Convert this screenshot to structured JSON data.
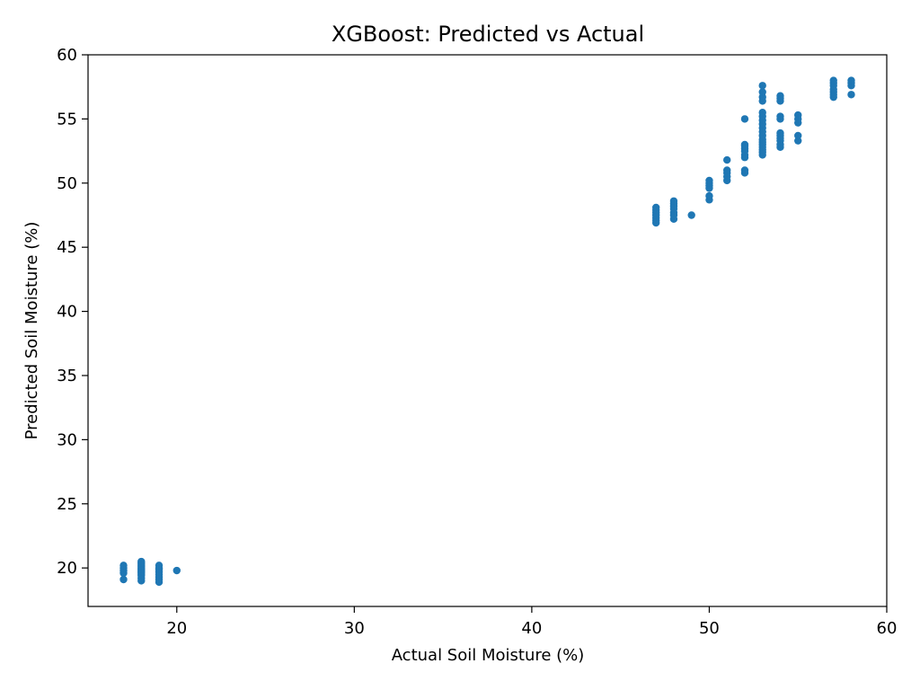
{
  "chart_data": {
    "type": "scatter",
    "title": "XGBoost: Predicted vs Actual",
    "xlabel": "Actual Soil Moisture (%)",
    "ylabel": "Predicted Soil Moisture (%)",
    "xlim": [
      15,
      60
    ],
    "ylim": [
      17,
      60
    ],
    "xticks": [
      20,
      30,
      40,
      50,
      60
    ],
    "yticks": [
      20,
      25,
      30,
      35,
      40,
      45,
      50,
      55,
      60
    ],
    "grid": false,
    "marker_color": "#1f77b4",
    "series": [
      {
        "points": [
          [
            17,
            19.1
          ],
          [
            17,
            19.6
          ],
          [
            17,
            19.8
          ],
          [
            17,
            20.0
          ],
          [
            17,
            20.2
          ],
          [
            18,
            19.0
          ],
          [
            18,
            19.2
          ],
          [
            18,
            19.4
          ],
          [
            18,
            19.5
          ],
          [
            18,
            19.6
          ],
          [
            18,
            19.7
          ],
          [
            18,
            19.8
          ],
          [
            18,
            19.9
          ],
          [
            18,
            20.0
          ],
          [
            18,
            20.1
          ],
          [
            18,
            20.2
          ],
          [
            18,
            20.3
          ],
          [
            18,
            20.4
          ],
          [
            18,
            20.5
          ],
          [
            19,
            18.9
          ],
          [
            19,
            19.1
          ],
          [
            19,
            19.3
          ],
          [
            19,
            19.5
          ],
          [
            19,
            19.7
          ],
          [
            19,
            19.9
          ],
          [
            19,
            20.0
          ],
          [
            19,
            20.2
          ],
          [
            20,
            19.8
          ],
          [
            47,
            46.9
          ],
          [
            47,
            47.1
          ],
          [
            47,
            47.3
          ],
          [
            47,
            47.5
          ],
          [
            47,
            47.7
          ],
          [
            47,
            47.9
          ],
          [
            47,
            48.1
          ],
          [
            48,
            47.2
          ],
          [
            48,
            47.5
          ],
          [
            48,
            47.7
          ],
          [
            48,
            48.0
          ],
          [
            48,
            48.2
          ],
          [
            48,
            48.4
          ],
          [
            48,
            48.6
          ],
          [
            49,
            47.5
          ],
          [
            50,
            48.7
          ],
          [
            50,
            49.0
          ],
          [
            50,
            49.6
          ],
          [
            50,
            49.8
          ],
          [
            50,
            50.0
          ],
          [
            50,
            50.2
          ],
          [
            51,
            50.2
          ],
          [
            51,
            50.5
          ],
          [
            51,
            50.8
          ],
          [
            51,
            51.0
          ],
          [
            51,
            51.8
          ],
          [
            52,
            50.8
          ],
          [
            52,
            51.0
          ],
          [
            52,
            52.0
          ],
          [
            52,
            52.2
          ],
          [
            52,
            52.5
          ],
          [
            52,
            52.7
          ],
          [
            52,
            52.9
          ],
          [
            52,
            53.0
          ],
          [
            52,
            55.0
          ],
          [
            53,
            52.2
          ],
          [
            53,
            52.4
          ],
          [
            53,
            52.6
          ],
          [
            53,
            52.8
          ],
          [
            53,
            53.0
          ],
          [
            53,
            53.2
          ],
          [
            53,
            53.4
          ],
          [
            53,
            53.7
          ],
          [
            53,
            54.0
          ],
          [
            53,
            54.3
          ],
          [
            53,
            54.6
          ],
          [
            53,
            54.9
          ],
          [
            53,
            55.2
          ],
          [
            53,
            55.5
          ],
          [
            53,
            56.4
          ],
          [
            53,
            56.7
          ],
          [
            53,
            57.1
          ],
          [
            53,
            57.6
          ],
          [
            54,
            52.8
          ],
          [
            54,
            53.0
          ],
          [
            54,
            53.3
          ],
          [
            54,
            53.5
          ],
          [
            54,
            53.7
          ],
          [
            54,
            53.9
          ],
          [
            54,
            55.0
          ],
          [
            54,
            55.2
          ],
          [
            54,
            56.4
          ],
          [
            54,
            56.6
          ],
          [
            54,
            56.8
          ],
          [
            55,
            53.3
          ],
          [
            55,
            53.7
          ],
          [
            55,
            54.7
          ],
          [
            55,
            55.0
          ],
          [
            55,
            55.3
          ],
          [
            57,
            56.7
          ],
          [
            57,
            56.9
          ],
          [
            57,
            57.1
          ],
          [
            57,
            57.3
          ],
          [
            57,
            57.6
          ],
          [
            57,
            57.8
          ],
          [
            57,
            58.0
          ],
          [
            58,
            56.9
          ],
          [
            58,
            57.6
          ],
          [
            58,
            57.8
          ],
          [
            58,
            58.0
          ]
        ]
      }
    ]
  }
}
